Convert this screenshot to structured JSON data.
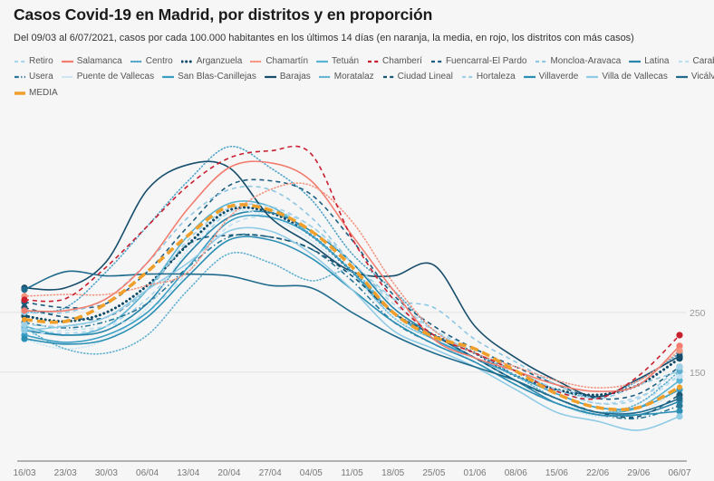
{
  "header": {
    "title": "Casos Covid-19 en Madrid, por distritos y en proporción",
    "subtitle": "Del 09/03 al 6/07/2021, casos por cada 100.000 habitantes en los últimos 14 días (en naranja, la media, en rojo, los distritos con más casos)"
  },
  "chart_data": {
    "type": "line",
    "title": "Casos Covid-19 en Madrid, por distritos y en proporción",
    "subtitle": "Del 09/03 al 6/07/2021, casos por cada 100.000 habitantes en los últimos 14 días (en naranja, la media, en rojo, los distritos con más casos)",
    "xlabel": "",
    "ylabel": "",
    "x": [
      "16/03",
      "23/03",
      "30/03",
      "06/04",
      "13/04",
      "20/04",
      "27/04",
      "04/05",
      "11/05",
      "18/05",
      "25/05",
      "01/06",
      "08/06",
      "15/06",
      "22/06",
      "29/06",
      "06/07"
    ],
    "y_ticks": [
      250,
      150
    ],
    "ylim": [
      0,
      545
    ],
    "grid": true,
    "y_axis_position": "right",
    "legend_position": "top",
    "series": [
      {
        "name": "Retiro",
        "color": "#a9d6ec",
        "style": "dashed",
        "values": [
          220,
          215,
          227,
          273,
          348,
          417,
          421,
          394,
          333,
          265,
          220,
          189,
          152,
          121,
          98,
          109,
          144
        ]
      },
      {
        "name": "Salamanca",
        "color": "#f27d6f",
        "style": "solid",
        "values": [
          253,
          253,
          273,
          333,
          424,
          492,
          500,
          470,
          379,
          288,
          205,
          174,
          152,
          129,
          118,
          129,
          194
        ]
      },
      {
        "name": "Centro",
        "color": "#4fa3c7",
        "style": "dotted",
        "values": [
          250,
          258,
          318,
          394,
          470,
          527,
          492,
          439,
          348,
          288,
          220,
          182,
          152,
          121,
          109,
          136,
          182
        ]
      },
      {
        "name": "Arganzuela",
        "color": "#0d4a68",
        "style": "dots",
        "values": [
          244,
          235,
          250,
          295,
          364,
          421,
          417,
          379,
          318,
          250,
          212,
          182,
          144,
          121,
          112,
          129,
          173
        ]
      },
      {
        "name": "Chamartín",
        "color": "#f4937e",
        "style": "dotted",
        "values": [
          277,
          280,
          280,
          295,
          318,
          409,
          455,
          462,
          402,
          300,
          220,
          182,
          159,
          136,
          124,
          136,
          186
        ]
      },
      {
        "name": "Tetuán",
        "color": "#5ab4d3",
        "style": "solid",
        "values": [
          227,
          212,
          227,
          288,
          379,
          432,
          427,
          379,
          318,
          242,
          205,
          174,
          136,
          106,
          83,
          91,
          136
        ]
      },
      {
        "name": "Chamberí",
        "color": "#c8202f",
        "style": "dashed",
        "values": [
          271,
          273,
          326,
          394,
          462,
          508,
          520,
          515,
          374,
          273,
          212,
          182,
          152,
          118,
          106,
          144,
          212
        ]
      },
      {
        "name": "Fuencarral-El Pardo",
        "color": "#1c5f80",
        "style": "dashed",
        "values": [
          267,
          258,
          265,
          318,
          394,
          462,
          470,
          447,
          371,
          280,
          227,
          189,
          159,
          129,
          106,
          114,
          159
        ]
      },
      {
        "name": "Moncloa-Aravaca",
        "color": "#8dc7e2",
        "style": "dashed",
        "values": [
          250,
          250,
          273,
          333,
          409,
          455,
          455,
          409,
          333,
          273,
          258,
          205,
          167,
          129,
          106,
          129,
          152
        ]
      },
      {
        "name": "Latina",
        "color": "#2886aa",
        "style": "solid",
        "values": [
          220,
          212,
          220,
          265,
          348,
          409,
          417,
          386,
          333,
          258,
          212,
          174,
          136,
          98,
          79,
          79,
          101
        ]
      },
      {
        "name": "Carabanchel",
        "color": "#bde1f1",
        "style": "dashed",
        "values": [
          212,
          220,
          227,
          250,
          318,
          394,
          409,
          379,
          318,
          250,
          205,
          167,
          129,
          98,
          83,
          98,
          144
        ]
      },
      {
        "name": "Usera",
        "color": "#2a7898",
        "style": "dash-dot",
        "values": [
          233,
          224,
          235,
          265,
          326,
          376,
          376,
          356,
          303,
          235,
          197,
          167,
          129,
          98,
          79,
          73,
          94
        ]
      },
      {
        "name": "Puente de Vallecas",
        "color": "#cbe6f2",
        "style": "dotted",
        "values": [
          205,
          189,
          205,
          258,
          356,
          417,
          409,
          371,
          311,
          242,
          205,
          167,
          129,
          98,
          76,
          83,
          121
        ]
      },
      {
        "name": "San Blas-Canillejas",
        "color": "#3a9ec4",
        "style": "solid",
        "values": [
          212,
          200,
          212,
          250,
          326,
          402,
          409,
          379,
          318,
          250,
          205,
          174,
          144,
          114,
          91,
          91,
          121
        ]
      },
      {
        "name": "Barajas",
        "color": "#174e6b",
        "style": "solid",
        "values": [
          291,
          291,
          335,
          455,
          497,
          492,
          409,
          364,
          318,
          311,
          329,
          227,
          174,
          136,
          109,
          139,
          177
        ]
      },
      {
        "name": "Moratalaz",
        "color": "#5fb0d0",
        "style": "dotted",
        "values": [
          224,
          189,
          182,
          212,
          288,
          348,
          333,
          303,
          318,
          250,
          212,
          182,
          144,
          106,
          83,
          98,
          152
        ]
      },
      {
        "name": "Ciudad Lineal",
        "color": "#1a5675",
        "style": "dashed",
        "values": [
          258,
          242,
          242,
          288,
          364,
          379,
          376,
          356,
          311,
          250,
          212,
          174,
          136,
          106,
          83,
          76,
          112
        ]
      },
      {
        "name": "Hortaleza",
        "color": "#9fd0e6",
        "style": "dashed",
        "values": [
          230,
          227,
          242,
          288,
          371,
          424,
          427,
          394,
          333,
          273,
          220,
          182,
          152,
          121,
          98,
          106,
          159
        ]
      },
      {
        "name": "Villaverde",
        "color": "#2b8fb4",
        "style": "solid",
        "values": [
          206,
          197,
          205,
          242,
          311,
          371,
          371,
          341,
          288,
          235,
          197,
          167,
          129,
          98,
          79,
          79,
          85
        ]
      },
      {
        "name": "Villa de Vallecas",
        "color": "#8fcbe5",
        "style": "solid",
        "values": [
          220,
          227,
          242,
          288,
          333,
          386,
          386,
          348,
          288,
          220,
          189,
          159,
          121,
          83,
          68,
          53,
          76
        ]
      },
      {
        "name": "Vicálvaro",
        "color": "#1f6b8c",
        "style": "solid",
        "values": [
          288,
          318,
          311,
          314,
          314,
          311,
          295,
          291,
          250,
          212,
          182,
          159,
          136,
          106,
          83,
          83,
          106
        ]
      },
      {
        "name": "MEDIA",
        "color": "#f0a02a",
        "style": "dashed-thick",
        "values": [
          238,
          235,
          265,
          318,
          379,
          427,
          421,
          386,
          326,
          250,
          209,
          189,
          152,
          114,
          91,
          91,
          125
        ]
      }
    ]
  }
}
